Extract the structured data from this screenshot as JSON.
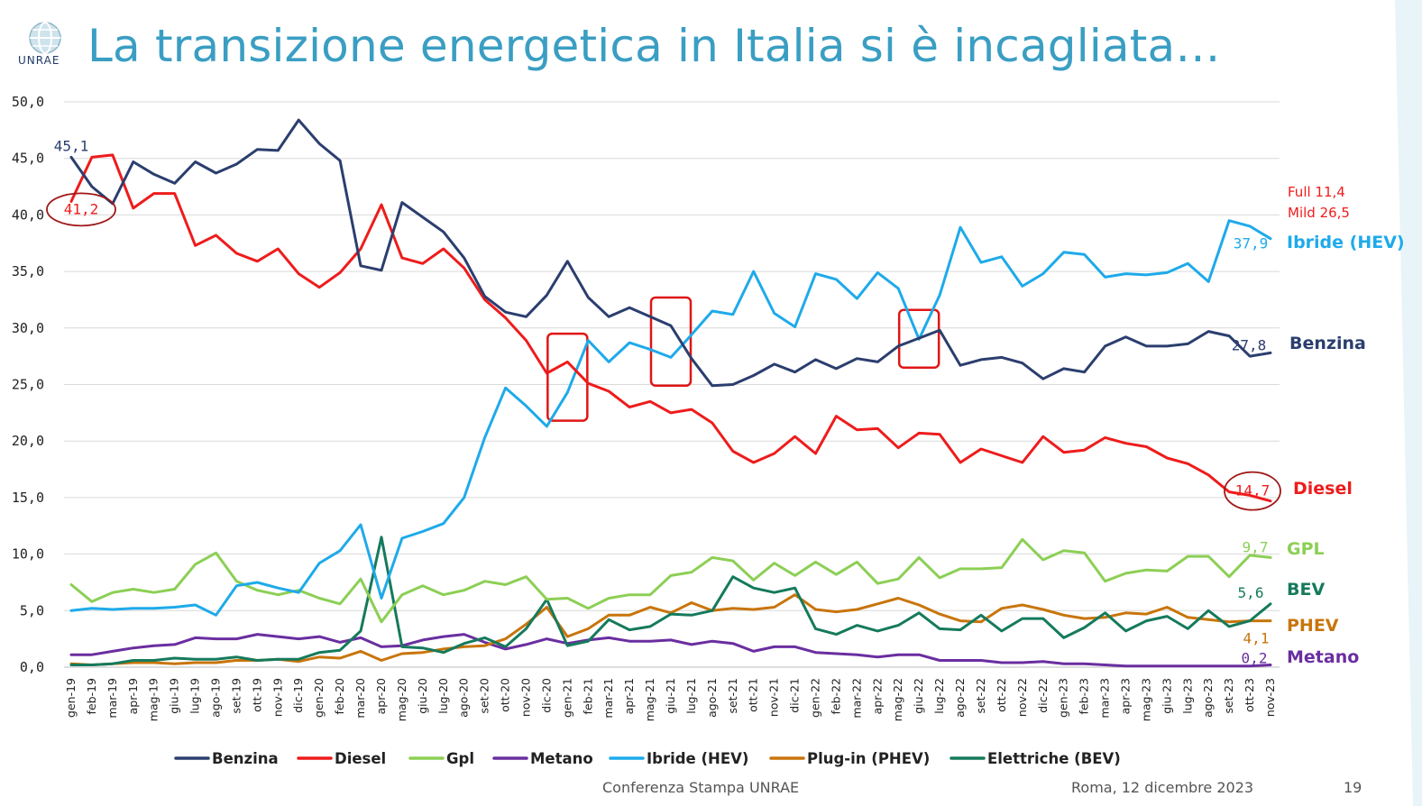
{
  "title": "La transizione energetica in Italia si è incagliata…",
  "logo_text": "UNRAE",
  "footer": {
    "center": "Conferenza Stampa UNRAE",
    "right": "Roma, 12 dicembre 2023",
    "page": "19"
  },
  "colors": {
    "title": "#3a9ec3",
    "benzina": "#2b3e6e",
    "diesel": "#ee1c1c",
    "gpl": "#8ccf55",
    "metano": "#6a2ea0",
    "hev": "#1eaaea",
    "phev": "#c8750c",
    "bev": "#157a5c",
    "highlight": "#e01515"
  },
  "chart_data": {
    "type": "line",
    "ylim": [
      0,
      50
    ],
    "yticks": [
      "0,0",
      "5,0",
      "10,0",
      "15,0",
      "20,0",
      "25,0",
      "30,0",
      "35,0",
      "40,0",
      "45,0",
      "50,0"
    ],
    "grid": true,
    "legend_position": "bottom",
    "categories": [
      "gen-19",
      "feb-19",
      "mar-19",
      "apr-19",
      "mag-19",
      "giu-19",
      "lug-19",
      "ago-19",
      "set-19",
      "ott-19",
      "nov-19",
      "dic-19",
      "gen-20",
      "feb-20",
      "mar-20",
      "apr-20",
      "mag-20",
      "giu-20",
      "lug-20",
      "ago-20",
      "set-20",
      "ott-20",
      "nov-20",
      "dic-20",
      "gen-21",
      "feb-21",
      "mar-21",
      "apr-21",
      "mag-21",
      "giu-21",
      "lug-21",
      "ago-21",
      "set-21",
      "ott-21",
      "nov-21",
      "dic-21",
      "gen-22",
      "feb-22",
      "mar-22",
      "apr-22",
      "mag-22",
      "giu-22",
      "lug-22",
      "ago-22",
      "set-22",
      "ott-22",
      "nov-22",
      "dic-22",
      "gen-23",
      "feb-23",
      "mar-23",
      "apr-23",
      "mag-23",
      "giu-23",
      "lug-23",
      "ago-23",
      "set-23",
      "ott-23",
      "nov-23"
    ],
    "series": [
      {
        "name": "Benzina",
        "key": "benzina",
        "values": [
          45.1,
          42.5,
          41.0,
          44.7,
          43.6,
          42.8,
          44.7,
          43.7,
          44.5,
          45.8,
          45.7,
          48.4,
          46.3,
          44.8,
          35.5,
          35.1,
          41.1,
          39.8,
          38.5,
          36.2,
          32.8,
          31.4,
          31.0,
          32.9,
          35.9,
          32.7,
          31.0,
          31.8,
          31.0,
          30.2,
          27.3,
          24.9,
          25.0,
          25.8,
          26.8,
          26.1,
          27.2,
          26.4,
          27.3,
          27.0,
          28.4,
          29.1,
          29.8,
          26.7,
          27.2,
          27.4,
          26.9,
          25.5,
          26.4,
          26.1,
          28.4,
          29.2,
          28.4,
          28.4,
          28.6,
          29.7,
          29.3,
          27.5,
          27.8
        ]
      },
      {
        "name": "Diesel",
        "key": "diesel",
        "values": [
          41.2,
          45.1,
          45.3,
          40.6,
          41.9,
          41.9,
          37.3,
          38.2,
          36.6,
          35.9,
          37.0,
          34.8,
          33.6,
          34.9,
          37.0,
          40.9,
          36.2,
          35.7,
          37.0,
          35.3,
          32.5,
          30.9,
          28.9,
          26.0,
          27.0,
          25.1,
          24.4,
          23.0,
          23.5,
          22.5,
          22.8,
          21.6,
          19.1,
          18.1,
          18.9,
          20.4,
          18.9,
          22.2,
          21.0,
          21.1,
          19.4,
          20.7,
          20.6,
          18.1,
          19.3,
          18.7,
          18.1,
          20.4,
          19.0,
          19.2,
          20.3,
          19.8,
          19.5,
          18.5,
          18.0,
          17.0,
          15.5,
          15.2,
          14.7
        ]
      },
      {
        "name": "Gpl",
        "key": "gpl",
        "values": [
          7.3,
          5.8,
          6.6,
          6.9,
          6.6,
          6.9,
          9.1,
          10.1,
          7.6,
          6.8,
          6.4,
          6.8,
          6.1,
          5.6,
          7.8,
          4.0,
          6.4,
          7.2,
          6.4,
          6.8,
          7.6,
          7.3,
          8.0,
          6.0,
          6.1,
          5.2,
          6.1,
          6.4,
          6.4,
          8.1,
          8.4,
          9.7,
          9.4,
          7.7,
          9.2,
          8.1,
          9.3,
          8.2,
          9.3,
          7.4,
          7.8,
          9.7,
          7.9,
          8.7,
          8.7,
          8.8,
          11.3,
          9.5,
          10.3,
          10.1,
          7.6,
          8.3,
          8.6,
          8.5,
          9.8,
          9.8,
          8.0,
          9.9,
          9.7
        ]
      },
      {
        "name": "Metano",
        "key": "metano",
        "values": [
          1.1,
          1.1,
          1.4,
          1.7,
          1.9,
          2.0,
          2.6,
          2.5,
          2.5,
          2.9,
          2.7,
          2.5,
          2.7,
          2.2,
          2.6,
          1.8,
          1.9,
          2.4,
          2.7,
          2.9,
          2.2,
          1.6,
          2.0,
          2.5,
          2.1,
          2.4,
          2.6,
          2.3,
          2.3,
          2.4,
          2.0,
          2.3,
          2.1,
          1.4,
          1.8,
          1.8,
          1.3,
          1.2,
          1.1,
          0.9,
          1.1,
          1.1,
          0.6,
          0.6,
          0.6,
          0.4,
          0.4,
          0.5,
          0.3,
          0.3,
          0.2,
          0.1,
          0.1,
          0.1,
          0.1,
          0.1,
          0.1,
          0.1,
          0.2
        ]
      },
      {
        "name": "Ibride (HEV)",
        "key": "hev",
        "values": [
          5.0,
          5.2,
          5.1,
          5.2,
          5.2,
          5.3,
          5.5,
          4.6,
          7.2,
          7.5,
          7.0,
          6.6,
          9.2,
          10.3,
          12.6,
          6.1,
          11.4,
          12.0,
          12.7,
          15.0,
          20.3,
          24.7,
          23.1,
          21.3,
          24.3,
          28.9,
          27.0,
          28.7,
          28.1,
          27.4,
          29.4,
          31.5,
          31.2,
          35.0,
          31.3,
          30.1,
          34.8,
          34.3,
          32.6,
          34.9,
          33.5,
          29.0,
          32.9,
          38.9,
          35.8,
          36.3,
          33.7,
          34.8,
          36.7,
          36.5,
          34.5,
          34.8,
          34.7,
          34.9,
          35.7,
          34.1,
          39.5,
          39.0,
          37.9
        ]
      },
      {
        "name": "Plug-in (PHEV)",
        "key": "phev",
        "values": [
          0.3,
          0.2,
          0.3,
          0.4,
          0.4,
          0.3,
          0.4,
          0.4,
          0.6,
          0.6,
          0.7,
          0.5,
          0.9,
          0.8,
          1.4,
          0.6,
          1.2,
          1.3,
          1.6,
          1.8,
          1.9,
          2.5,
          3.8,
          5.3,
          2.7,
          3.4,
          4.6,
          4.6,
          5.3,
          4.8,
          5.7,
          5.0,
          5.2,
          5.1,
          5.3,
          6.4,
          5.1,
          4.9,
          5.1,
          5.6,
          6.1,
          5.5,
          4.7,
          4.1,
          4.0,
          5.2,
          5.5,
          5.1,
          4.6,
          4.3,
          4.4,
          4.8,
          4.7,
          5.3,
          4.4,
          4.2,
          4.0,
          4.1,
          4.1
        ]
      },
      {
        "name": "Elettriche (BEV)",
        "key": "bev",
        "values": [
          0.2,
          0.2,
          0.3,
          0.6,
          0.6,
          0.8,
          0.7,
          0.7,
          0.9,
          0.6,
          0.7,
          0.7,
          1.3,
          1.5,
          3.2,
          11.5,
          1.8,
          1.7,
          1.3,
          2.1,
          2.6,
          1.8,
          3.4,
          6.0,
          1.9,
          2.3,
          4.2,
          3.3,
          3.6,
          4.7,
          4.6,
          5.0,
          8.0,
          7.0,
          6.6,
          7.0,
          3.4,
          2.9,
          3.7,
          3.2,
          3.7,
          4.8,
          3.4,
          3.3,
          4.6,
          3.2,
          4.3,
          4.3,
          2.6,
          3.5,
          4.8,
          3.2,
          4.1,
          4.5,
          3.4,
          5.0,
          3.6,
          4.1,
          5.6
        ]
      }
    ],
    "value_labels": [
      {
        "key": "benzina",
        "index": 0,
        "text": "45,1"
      },
      {
        "key": "diesel",
        "index": 0,
        "text": "41,2"
      },
      {
        "key": "hev",
        "index": 58,
        "text": "37,9"
      },
      {
        "key": "benzina",
        "index": 58,
        "text": "27,8"
      },
      {
        "key": "diesel",
        "index": 58,
        "text": "14,7"
      },
      {
        "key": "gpl",
        "index": 58,
        "text": "9,7"
      },
      {
        "key": "bev",
        "index": 58,
        "text": "5,6"
      },
      {
        "key": "phev",
        "index": 58,
        "text": "4,1"
      },
      {
        "key": "metano",
        "index": 58,
        "text": "0,2"
      }
    ],
    "end_labels": [
      {
        "key": "hev",
        "text": "Ibride (HEV)"
      },
      {
        "key": "benzina",
        "text": "Benzina"
      },
      {
        "key": "diesel",
        "text": "Diesel"
      },
      {
        "key": "gpl",
        "text": "GPL"
      },
      {
        "key": "bev",
        "text": "BEV"
      },
      {
        "key": "phev",
        "text": "PHEV"
      },
      {
        "key": "metano",
        "text": "Metano"
      }
    ],
    "annotations": [
      "Full 11,4",
      "Mild 26,5"
    ],
    "highlighted_periods": [
      "gen-21",
      "giu-21",
      "giu-22"
    ]
  }
}
